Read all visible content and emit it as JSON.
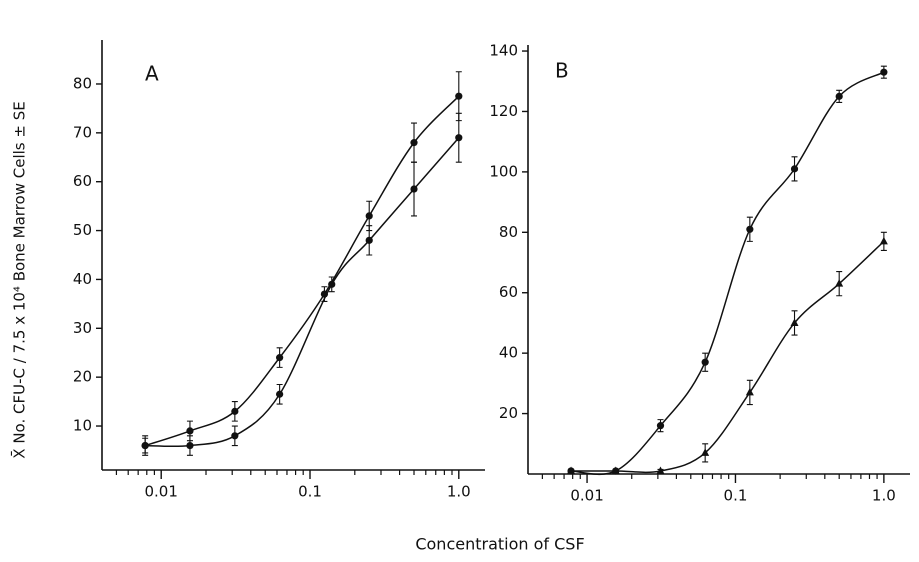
{
  "ylabel": "X̄ No. CFU-C / 7.5 x 10⁴ Bone Marrow Cells ± SE",
  "xlabel": "Concentration of CSF",
  "chart_data": [
    {
      "type": "line",
      "title": "A",
      "xscale": "log",
      "xlim": [
        0.004,
        1.5
      ],
      "xticks": [
        0.01,
        0.1,
        {
          "value": 1,
          "label": "1.0"
        }
      ],
      "ylim": [
        1,
        89
      ],
      "yticks": [
        10,
        20,
        30,
        40,
        50,
        60,
        70,
        80
      ],
      "series": [
        {
          "color": "#111111",
          "marker": "circle",
          "x": [
            0.0078,
            0.0156,
            0.03125,
            0.0625,
            0.125,
            0.25,
            0.5,
            1
          ],
          "values": [
            6,
            9,
            13,
            24,
            37,
            53,
            68,
            77.5
          ],
          "errors": [
            1.5,
            2,
            2,
            2,
            1.5,
            3,
            4,
            5
          ]
        },
        {
          "color": "#111111",
          "marker": "circle",
          "x": [
            0.0078,
            0.0156,
            0.03125,
            0.0625,
            0.14,
            0.25,
            0.5,
            1
          ],
          "values": [
            6,
            6,
            8,
            16.5,
            39,
            48,
            58.5,
            69
          ],
          "errors": [
            2,
            2,
            2,
            2,
            1.5,
            3,
            5.5,
            5
          ]
        }
      ]
    },
    {
      "type": "line",
      "title": "B",
      "xscale": "log",
      "xlim": [
        0.004,
        1.5
      ],
      "xticks": [
        0.01,
        0.1,
        {
          "value": 1,
          "label": "1.0"
        }
      ],
      "ylim": [
        0,
        142
      ],
      "yticks": [
        20,
        40,
        60,
        80,
        100,
        120,
        140
      ],
      "series": [
        {
          "color": "#111111",
          "marker": "circle",
          "x": [
            0.0078,
            0.0156,
            0.03125,
            0.0625,
            0.125,
            0.25,
            0.5,
            1
          ],
          "values": [
            1,
            1,
            16,
            37,
            81,
            101,
            125,
            133
          ],
          "errors": [
            0.5,
            0.5,
            2,
            3,
            4,
            4,
            2,
            2
          ]
        },
        {
          "color": "#111111",
          "marker": "triangle",
          "x": [
            0.0078,
            0.0156,
            0.03125,
            0.0625,
            0.125,
            0.25,
            0.5,
            1
          ],
          "values": [
            1,
            1,
            1,
            7,
            27,
            50,
            63,
            77
          ],
          "errors": [
            0.5,
            0.5,
            0.5,
            3,
            4,
            4,
            4,
            3
          ]
        }
      ]
    }
  ]
}
